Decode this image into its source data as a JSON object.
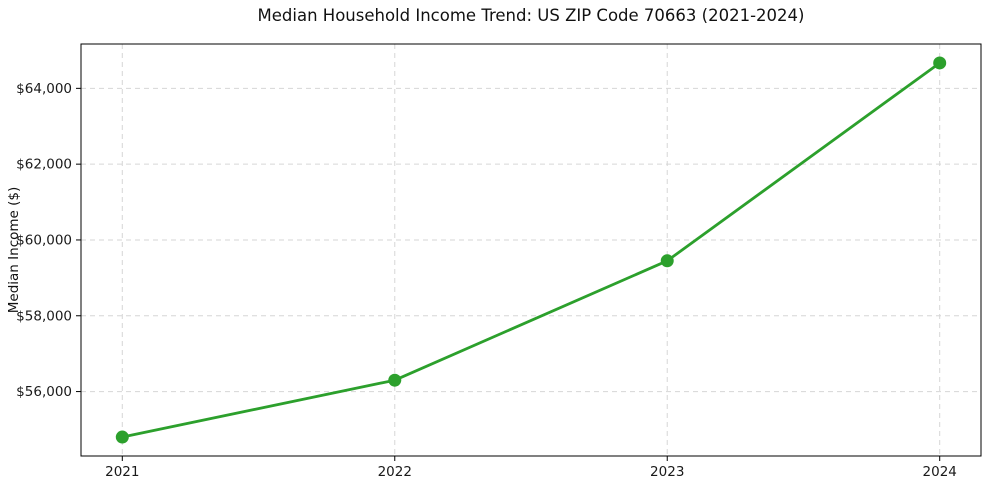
{
  "title": "Median Household Income Trend: US ZIP Code 70663 (2021-2024)",
  "chart_data": {
    "type": "line",
    "title": "Median Household Income Trend: US ZIP Code 70663 (2021-2024)",
    "xlabel": "",
    "ylabel": "Median Income ($)",
    "x": [
      2021,
      2022,
      2023,
      2024
    ],
    "x_tick_labels": [
      "2021",
      "2022",
      "2023",
      "2024"
    ],
    "series": [
      {
        "name": "Median Household Income",
        "values": [
          54800,
          56300,
          59450,
          64670
        ]
      }
    ],
    "y_ticks": [
      56000,
      58000,
      60000,
      62000,
      64000
    ],
    "y_tick_labels": [
      "$56,000",
      "$58,000",
      "$60,000",
      "$62,000",
      "$64,000"
    ],
    "ylim": [
      54300,
      65170
    ],
    "grid": true,
    "grid_style": "dashed",
    "legend": "none",
    "line_color": "#2ca02c",
    "marker": "circle"
  }
}
